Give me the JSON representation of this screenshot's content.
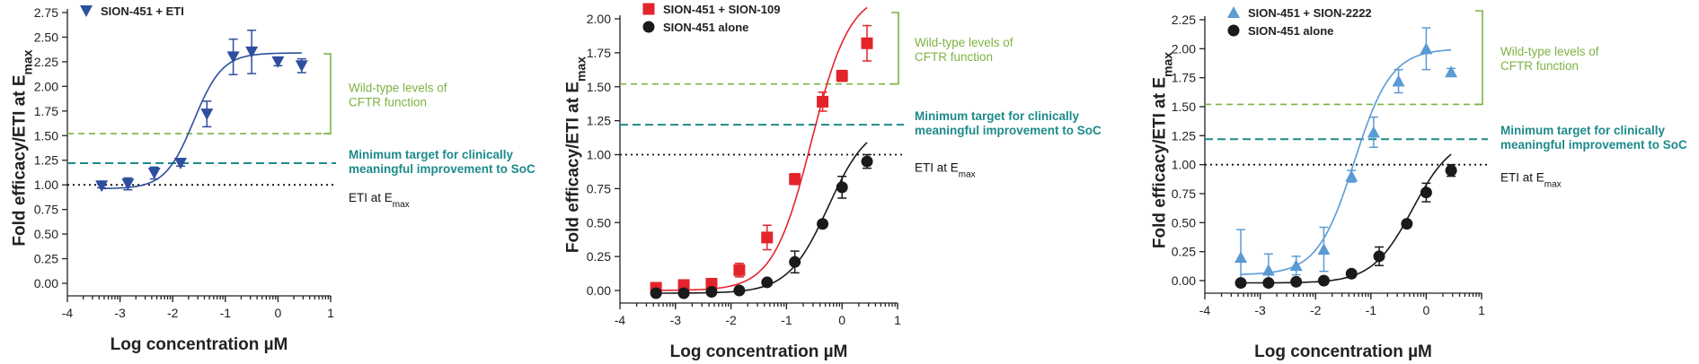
{
  "chart_data": [
    {
      "type": "scatter",
      "xlabel": "Log concentration µM",
      "ylabel_main": "Fold efficacy/ETI at E",
      "ylabel_sub": "max",
      "xlim": [
        -4,
        1
      ],
      "ylim": [
        0,
        2.75
      ],
      "xticks": [
        "-4",
        "-3",
        "-2",
        "-1",
        "0",
        "1"
      ],
      "yticks": [
        "0.00",
        "0.25",
        "0.50",
        "0.75",
        "1.00",
        "1.25",
        "1.50",
        "1.75",
        "2.00",
        "2.25",
        "2.50",
        "2.75"
      ],
      "references": {
        "wild_type": {
          "value": 1.52,
          "label_lines": [
            "Wild-type levels of",
            "CFTR function"
          ],
          "color": "#7cb342"
        },
        "minimum_target": {
          "value": 1.22,
          "label_lines": [
            "Minimum target for clinically",
            "meaningful improvement to SoC"
          ],
          "color": "#1e8a8a"
        },
        "eti": {
          "value": 1.0,
          "label_main": "ETI at E",
          "label_sub": "max",
          "color": "#111111"
        }
      },
      "series": [
        {
          "name": "SION-451 + ETI",
          "marker": "triangle-down",
          "color": "#2e4e9e",
          "x": [
            -3.35,
            -2.85,
            -2.35,
            -1.85,
            -1.35,
            -0.85,
            -0.5,
            0,
            0.45
          ],
          "y": [
            0.99,
            1.01,
            1.12,
            1.22,
            1.72,
            2.3,
            2.35,
            2.25,
            2.21
          ],
          "err": [
            0.02,
            0.06,
            0.06,
            0.03,
            0.13,
            0.18,
            0.22,
            0.04,
            0.07
          ],
          "curve": {
            "bottom": 0.96,
            "top": 2.34,
            "logec50": -1.6,
            "hill": 1.6
          }
        }
      ]
    },
    {
      "type": "scatter",
      "xlabel": "Log concentration µM",
      "ylabel_main": "Fold efficacy/ETI at E",
      "ylabel_sub": "max",
      "xlim": [
        -4,
        1
      ],
      "ylim": [
        0,
        2.0
      ],
      "xticks": [
        "-4",
        "-3",
        "-2",
        "-1",
        "0",
        "1"
      ],
      "yticks": [
        "0.00",
        "0.25",
        "0.50",
        "0.75",
        "1.00",
        "1.25",
        "1.50",
        "1.75",
        "2.00"
      ],
      "references": {
        "wild_type": {
          "value": 1.52,
          "label_lines": [
            "Wild-type levels of",
            "CFTR function"
          ],
          "color": "#7cb342"
        },
        "minimum_target": {
          "value": 1.22,
          "label_lines": [
            "Minimum target for clinically",
            "meaningful improvement to SoC"
          ],
          "color": "#1e8a8a"
        },
        "eti": {
          "value": 1.0,
          "label_main": "ETI at E",
          "label_sub": "max",
          "color": "#111111"
        }
      },
      "series": [
        {
          "name": "SION-451 + SION-109",
          "marker": "square",
          "color": "#e3242b",
          "x": [
            -3.35,
            -2.85,
            -2.35,
            -1.85,
            -1.35,
            -0.85,
            -0.35,
            0,
            0.45
          ],
          "y": [
            0.02,
            0.04,
            0.05,
            0.15,
            0.39,
            0.82,
            1.39,
            1.58,
            1.82
          ],
          "err": [
            0.02,
            0.02,
            0.03,
            0.05,
            0.09,
            0.04,
            0.07,
            0.04,
            0.13
          ],
          "curve": {
            "bottom": 0.0,
            "top": 2.2,
            "logec50": -0.55,
            "hill": 1.25
          }
        },
        {
          "name": "SION-451 alone",
          "marker": "circle",
          "color": "#1a1a1a",
          "x": [
            -3.35,
            -2.85,
            -2.35,
            -1.85,
            -1.35,
            -0.85,
            -0.35,
            0,
            0.45
          ],
          "y": [
            -0.02,
            -0.02,
            -0.01,
            0.0,
            0.06,
            0.21,
            0.49,
            0.76,
            0.95
          ],
          "err": [
            0.02,
            0.02,
            0.02,
            0.02,
            0.02,
            0.08,
            0.02,
            0.08,
            0.05
          ],
          "curve": {
            "bottom": -0.02,
            "top": 1.25,
            "logec50": -0.25,
            "hill": 1.2
          }
        }
      ]
    },
    {
      "type": "scatter",
      "xlabel": "Log concentration µM",
      "ylabel_main": "Fold efficacy/ETI at E",
      "ylabel_sub": "max",
      "xlim": [
        -4,
        1
      ],
      "ylim": [
        0,
        2.25
      ],
      "xticks": [
        "-4",
        "-3",
        "-2",
        "-1",
        "0",
        "1"
      ],
      "yticks": [
        "0.00",
        "0.25",
        "0.50",
        "0.75",
        "1.00",
        "1.25",
        "1.50",
        "1.75",
        "2.00",
        "2.25"
      ],
      "references": {
        "wild_type": {
          "value": 1.52,
          "label_lines": [
            "Wild-type levels of",
            "CFTR function"
          ],
          "color": "#7cb342"
        },
        "minimum_target": {
          "value": 1.22,
          "label_lines": [
            "Minimum target for clinically",
            "meaningful improvement to SoC"
          ],
          "color": "#1e8a8a"
        },
        "eti": {
          "value": 1.0,
          "label_main": "ETI at E",
          "label_sub": "max",
          "color": "#111111"
        }
      },
      "series": [
        {
          "name": "SION-451 + SION-2222",
          "marker": "triangle-up",
          "color": "#5b9bd5",
          "x": [
            -3.35,
            -2.85,
            -2.35,
            -1.85,
            -1.35,
            -0.95,
            -0.5,
            0,
            0.45
          ],
          "y": [
            0.2,
            0.09,
            0.13,
            0.27,
            0.9,
            1.28,
            1.72,
            2.0,
            1.8
          ],
          "err": [
            0.24,
            0.14,
            0.08,
            0.19,
            0.05,
            0.13,
            0.1,
            0.18,
            0.03
          ],
          "curve": {
            "bottom": 0.05,
            "top": 2.0,
            "logec50": -1.3,
            "hill": 1.3
          }
        },
        {
          "name": "SION-451 alone",
          "marker": "circle",
          "color": "#1a1a1a",
          "x": [
            -3.35,
            -2.85,
            -2.35,
            -1.85,
            -1.35,
            -0.85,
            -0.35,
            0,
            0.45
          ],
          "y": [
            -0.02,
            -0.02,
            -0.01,
            0.0,
            0.06,
            0.21,
            0.49,
            0.76,
            0.95
          ],
          "err": [
            0.02,
            0.02,
            0.02,
            0.02,
            0.02,
            0.08,
            0.02,
            0.08,
            0.05
          ],
          "curve": {
            "bottom": -0.02,
            "top": 1.25,
            "logec50": -0.25,
            "hill": 1.2
          }
        }
      ]
    }
  ]
}
